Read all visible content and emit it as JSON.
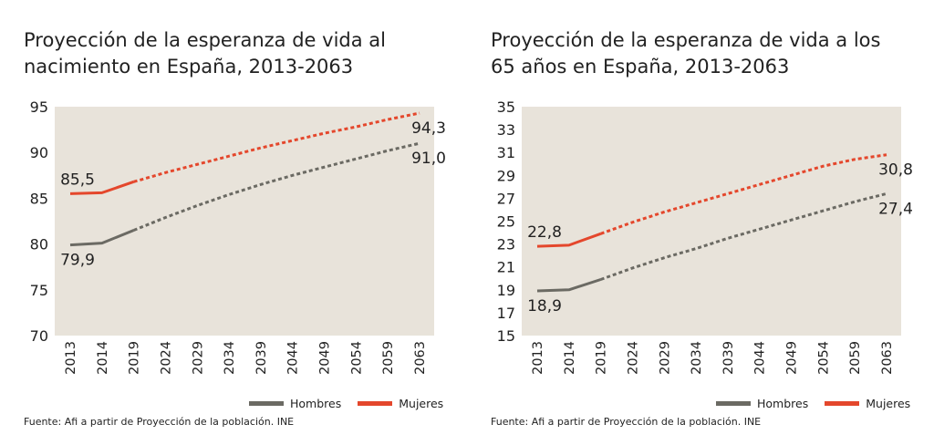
{
  "colors": {
    "plot_bg": "#e8e3da",
    "hombres": "#6b6a63",
    "mujeres": "#e4472c"
  },
  "chart_data": [
    {
      "type": "line",
      "title": "Proyección de la esperanza de vida al nacimiento en España, 2013-2063",
      "categories": [
        "2013",
        "2014",
        "2019",
        "2024",
        "2029",
        "2034",
        "2039",
        "2044",
        "2049",
        "2054",
        "2059",
        "2063"
      ],
      "ylim": [
        70,
        95
      ],
      "yticks": [
        95,
        90,
        85,
        80,
        75,
        70
      ],
      "projection_start_index": 2,
      "grid": false,
      "legend_position": "bottom-right",
      "series": [
        {
          "name": "Hombres",
          "values": [
            79.9,
            80.1,
            81.5,
            82.9,
            84.2,
            85.4,
            86.5,
            87.5,
            88.4,
            89.3,
            90.2,
            91.0
          ]
        },
        {
          "name": "Mujeres",
          "values": [
            85.5,
            85.6,
            86.8,
            87.8,
            88.7,
            89.6,
            90.5,
            91.3,
            92.1,
            92.8,
            93.6,
            94.3
          ]
        }
      ],
      "annotations": [
        {
          "text": "85,5",
          "series": "Mujeres",
          "x": "2013",
          "y": 85.5
        },
        {
          "text": "79,9",
          "series": "Hombres",
          "x": "2013",
          "y": 79.9
        },
        {
          "text": "94,3",
          "series": "Mujeres",
          "x": "2063",
          "y": 94.3
        },
        {
          "text": "91,0",
          "series": "Hombres",
          "x": "2063",
          "y": 91.0
        }
      ],
      "source": "Fuente: Afi a partir de Proyección de la población. INE"
    },
    {
      "type": "line",
      "title": "Proyección de la esperanza de vida a los 65 años en España, 2013-2063",
      "categories": [
        "2013",
        "2014",
        "2019",
        "2024",
        "2029",
        "2034",
        "2039",
        "2044",
        "2049",
        "2054",
        "2059",
        "2063"
      ],
      "ylim": [
        15,
        35
      ],
      "yticks": [
        35,
        33,
        31,
        29,
        27,
        25,
        23,
        21,
        19,
        17,
        15
      ],
      "projection_start_index": 2,
      "grid": false,
      "legend_position": "bottom-right",
      "series": [
        {
          "name": "Hombres",
          "values": [
            18.9,
            19.0,
            19.9,
            20.9,
            21.8,
            22.6,
            23.5,
            24.3,
            25.1,
            25.9,
            26.7,
            27.4
          ]
        },
        {
          "name": "Mujeres",
          "values": [
            22.8,
            22.9,
            23.9,
            24.9,
            25.8,
            26.6,
            27.4,
            28.2,
            29.0,
            29.8,
            30.4,
            30.8
          ]
        }
      ],
      "annotations": [
        {
          "text": "22,8",
          "series": "Mujeres",
          "x": "2013",
          "y": 22.8
        },
        {
          "text": "18,9",
          "series": "Hombres",
          "x": "2013",
          "y": 18.9
        },
        {
          "text": "30,8",
          "series": "Mujeres",
          "x": "2063",
          "y": 30.8
        },
        {
          "text": "27,4",
          "series": "Hombres",
          "x": "2063",
          "y": 27.4
        }
      ],
      "source": "Fuente: Afi a partir de Proyección de la población. INE"
    }
  ]
}
